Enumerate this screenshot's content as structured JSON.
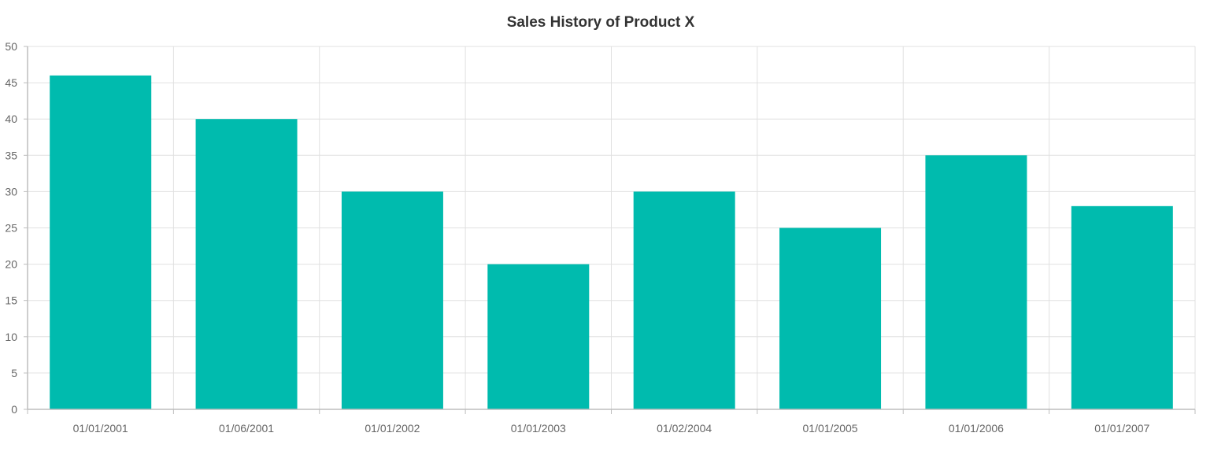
{
  "chart_data": {
    "type": "bar",
    "title": "Sales History of Product X",
    "xlabel": "",
    "ylabel": "",
    "categories": [
      "01/01/2001",
      "01/06/2001",
      "01/01/2002",
      "01/01/2003",
      "01/02/2004",
      "01/01/2005",
      "01/01/2006",
      "01/01/2007"
    ],
    "series": [
      {
        "values": [
          46,
          40,
          30,
          20,
          30,
          25,
          35,
          28
        ]
      }
    ],
    "ylim": [
      0,
      50
    ],
    "yticks": [
      0,
      5,
      10,
      15,
      20,
      25,
      30,
      35,
      40,
      45,
      50
    ],
    "grid": true,
    "legend": "none",
    "colors": {
      "bar": "#00BBAE"
    }
  }
}
